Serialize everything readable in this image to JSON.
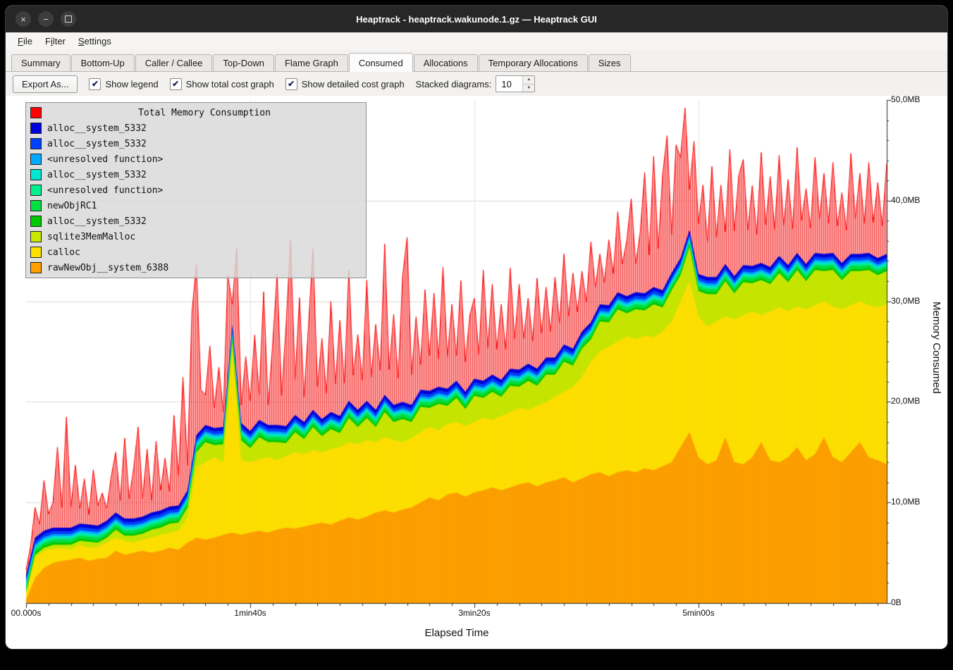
{
  "window": {
    "title": "Heaptrack - heaptrack.wakunode.1.gz — Heaptrack GUI",
    "controls": {
      "close": "×",
      "minimize": "−",
      "maximize": "square"
    }
  },
  "menu": {
    "items": [
      {
        "label": "File",
        "mnemonic": 0
      },
      {
        "label": "Filter",
        "mnemonic": 1
      },
      {
        "label": "Settings",
        "mnemonic": 0
      }
    ]
  },
  "tabs": {
    "items": [
      "Summary",
      "Bottom-Up",
      "Caller / Callee",
      "Top-Down",
      "Flame Graph",
      "Consumed",
      "Allocations",
      "Temporary Allocations",
      "Sizes"
    ],
    "active": "Consumed"
  },
  "toolbar": {
    "export_label": "Export As...",
    "checkboxes": [
      {
        "label": "Show legend",
        "checked": true
      },
      {
        "label": "Show total cost graph",
        "checked": true
      },
      {
        "label": "Show detailed cost graph",
        "checked": true
      }
    ],
    "stacked_label": "Stacked diagrams:",
    "stacked_value": "10"
  },
  "chart_data": {
    "type": "area",
    "title": "Total Memory Consumption",
    "xlabel": "Elapsed Time",
    "ylabel": "Memory Consumed",
    "xlim": [
      0,
      384
    ],
    "ylim": [
      0,
      50
    ],
    "x_ticks": [
      {
        "t": 0,
        "label": "00.000s"
      },
      {
        "t": 100,
        "label": "1min40s"
      },
      {
        "t": 200,
        "label": "3min20s"
      },
      {
        "t": 300,
        "label": "5min00s"
      }
    ],
    "y_ticks": [
      {
        "mb": 0,
        "label": "0B"
      },
      {
        "mb": 10,
        "label": "10,0MB"
      },
      {
        "mb": 20,
        "label": "20,0MB"
      },
      {
        "mb": 30,
        "label": "30,0MB"
      },
      {
        "mb": 40,
        "label": "40,0MB"
      },
      {
        "mb": 50,
        "label": "50,0MB"
      }
    ],
    "grid": {
      "h_major_mb": 10,
      "v_major_t": 100
    },
    "legend": [
      {
        "label": "Total Memory Consumption",
        "color": "#ff0000",
        "title": true
      },
      {
        "label": "alloc__system_5332",
        "color": "#0000dd"
      },
      {
        "label": "alloc__system_5332",
        "color": "#0040ff"
      },
      {
        "label": "<unresolved function>",
        "color": "#00aaff"
      },
      {
        "label": "alloc__system_5332",
        "color": "#00e6cf"
      },
      {
        "label": "<unresolved function>",
        "color": "#00f08c"
      },
      {
        "label": "newObjRC1",
        "color": "#00e040"
      },
      {
        "label": "alloc__system_5332",
        "color": "#00c800"
      },
      {
        "label": "sqlite3MemMalloc",
        "color": "#c8e800"
      },
      {
        "label": "calloc",
        "color": "#ffe100"
      },
      {
        "label": "rawNewObj__system_6388",
        "color": "#ffa000"
      }
    ],
    "x_step": 4,
    "stack": [
      {
        "name": "rawNewObj__system_6388",
        "color": "#ffa000",
        "cumulative_mb": [
          0.3,
          2.5,
          3.5,
          4.0,
          4.2,
          4.3,
          4.5,
          4.2,
          4.4,
          4.5,
          5.2,
          4.8,
          5.0,
          5.2,
          5.0,
          5.2,
          5.5,
          5.3,
          6.0,
          6.5,
          6.3,
          6.5,
          6.8,
          7.0,
          6.8,
          7.0,
          7.2,
          7.0,
          7.3,
          7.5,
          7.4,
          7.6,
          7.8,
          8.0,
          7.8,
          8.2,
          8.5,
          8.3,
          8.6,
          9.0,
          9.2,
          9.0,
          9.3,
          9.5,
          10.0,
          10.5,
          10.2,
          10.8,
          11.0,
          10.6,
          11.0,
          11.2,
          11.5,
          11.2,
          11.5,
          11.8,
          12.0,
          11.6,
          12.0,
          12.2,
          12.5,
          12.0,
          12.4,
          12.8,
          13.0,
          12.6,
          13.0,
          13.2,
          13.0,
          13.4,
          13.2,
          13.6,
          14.0,
          15.5,
          17.0,
          14.5,
          13.8,
          14.2,
          16.5,
          14.0,
          13.8,
          14.5,
          16.0,
          14.2,
          14.0,
          14.5,
          15.5,
          14.2,
          14.8,
          16.5,
          14.5,
          14.0,
          15.0,
          16.0,
          14.5,
          14.2,
          13.8
        ]
      },
      {
        "name": "calloc",
        "color": "#ffe100",
        "cumulative_mb": [
          1.0,
          4.5,
          5.2,
          5.4,
          5.5,
          5.3,
          5.8,
          5.5,
          5.6,
          6.0,
          6.5,
          6.2,
          6.0,
          6.3,
          6.5,
          6.8,
          7.0,
          7.2,
          8.5,
          13.5,
          14.0,
          14.5,
          14.0,
          25.0,
          14.2,
          14.0,
          14.3,
          14.5,
          14.2,
          14.6,
          15.0,
          14.8,
          15.2,
          15.0,
          15.3,
          15.5,
          16.0,
          15.8,
          16.2,
          16.0,
          16.5,
          16.2,
          16.0,
          16.4,
          17.0,
          17.5,
          17.2,
          17.8,
          18.0,
          17.6,
          18.0,
          18.4,
          18.2,
          18.6,
          19.0,
          19.4,
          19.2,
          19.6,
          20.0,
          20.5,
          21.0,
          21.5,
          22.5,
          24.0,
          25.0,
          25.5,
          26.0,
          26.5,
          26.2,
          26.6,
          26.4,
          27.0,
          28.0,
          30.0,
          32.0,
          28.5,
          27.5,
          28.0,
          28.5,
          28.2,
          28.6,
          29.0,
          28.6,
          29.0,
          29.4,
          29.0,
          29.5,
          29.2,
          29.6,
          30.0,
          29.5,
          29.2,
          29.6,
          30.0,
          29.6,
          29.4,
          29.7
        ]
      },
      {
        "name": "sqlite3MemMalloc",
        "color": "#c8e800",
        "thickness_mb": [
          0.1,
          0.3,
          0.3,
          0.4,
          0.3,
          0.5,
          0.4,
          0.6,
          0.4,
          0.5,
          0.8,
          0.5,
          0.7,
          0.6,
          0.8,
          0.7,
          0.9,
          0.8,
          1.0,
          1.5,
          2.0,
          1.2,
          1.8,
          1.0,
          2.0,
          1.4,
          2.2,
          1.5,
          1.8,
          1.3,
          2.0,
          1.5,
          2.3,
          1.6,
          2.0,
          1.4,
          2.4,
          1.7,
          2.2,
          1.5,
          2.5,
          1.8,
          2.3,
          1.6,
          2.5,
          1.9,
          2.6,
          1.8,
          2.4,
          1.7,
          2.6,
          2.0,
          2.8,
          1.9,
          2.6,
          2.1,
          2.9,
          2.0,
          2.7,
          2.2,
          3.0,
          2.1,
          2.8,
          2.2,
          3.0,
          2.4,
          3.2,
          2.3,
          3.0,
          2.5,
          3.3,
          2.4,
          3.1,
          2.6,
          3.4,
          2.5,
          3.2,
          2.7,
          3.5,
          2.6,
          3.3,
          2.8,
          3.5,
          2.7,
          3.4,
          2.9,
          3.6,
          2.8,
          3.5,
          3.0,
          3.6,
          2.9,
          3.4,
          3.0,
          3.5,
          3.2,
          3.3
        ]
      },
      {
        "name": "alloc__system_5332",
        "color": "#00c800",
        "thickness_mb_const": 0.2
      },
      {
        "name": "newObjRC1",
        "color": "#00e040",
        "thickness_mb_const": 0.3
      },
      {
        "name": "<unresolved function>",
        "color": "#00f08c",
        "thickness_mb_const": 0.15
      },
      {
        "name": "alloc__system_5332",
        "color": "#00e6cf",
        "thickness_mb_const": 0.2
      },
      {
        "name": "<unresolved function>",
        "color": "#00aaff",
        "thickness_mb_const": 0.2
      },
      {
        "name": "alloc__system_5332",
        "color": "#0040ff",
        "thickness_mb_const": 0.3
      },
      {
        "name": "alloc__system_5332",
        "color": "#0000dd",
        "thickness_mb_const": 0.35
      }
    ],
    "total": {
      "name": "Total Memory Consumption",
      "color": "#ff0000",
      "x_step": 2,
      "extra_above_stack_mb": [
        0.5,
        1.0,
        3.0,
        1.0,
        5.0,
        1.5,
        2.5,
        8.0,
        2.0,
        11.0,
        2.0,
        6.0,
        1.5,
        4.5,
        1.0,
        5.5,
        2.0,
        3.0,
        1.2,
        4.0,
        6.0,
        1.5,
        8.0,
        2.0,
        5.0,
        9.0,
        1.8,
        6.5,
        1.2,
        7.0,
        2.0,
        5.0,
        1.5,
        9.0,
        3.0,
        12.0,
        2.5,
        15.0,
        17.0,
        4.0,
        3.0,
        8.0,
        2.0,
        6.0,
        1.5,
        10.0,
        2.0,
        12.5,
        1.8,
        7.0,
        3.0,
        9.0,
        2.5,
        13.0,
        2.0,
        8.0,
        15.0,
        3.0,
        10.0,
        18.0,
        3.5,
        12.0,
        2.5,
        9.0,
        16.0,
        2.8,
        8.0,
        2.2,
        11.0,
        3.0,
        9.5,
        2.5,
        13.0,
        3.0,
        7.5,
        2.5,
        12.0,
        2.8,
        8.5,
        3.2,
        15.0,
        3.0,
        9.0,
        2.5,
        12.5,
        16.5,
        3.0,
        8.0,
        2.5,
        10.0,
        3.5,
        9.5,
        2.8,
        12.0,
        3.2,
        8.0,
        2.5,
        10.5,
        3.0,
        7.0,
        8.0,
        2.5,
        11.0,
        3.0,
        9.0,
        2.8,
        7.5,
        2.5,
        10.0,
        3.0,
        8.5,
        2.8,
        6.5,
        2.5,
        9.0,
        3.0,
        7.0,
        2.6,
        8.0,
        2.8,
        9.0,
        3.0,
        7.5,
        2.8,
        6.0,
        2.5,
        8.0,
        2.6,
        5.0,
        2.2,
        6.5,
        2.5,
        8.0,
        3.0,
        5.5,
        9.5,
        2.8,
        6.0,
        12.0,
        3.5,
        13.0,
        4.0,
        11.5,
        14.5,
        3.8,
        12.0,
        10.0,
        13.5,
        4.0,
        11.0,
        5.0,
        9.0,
        3.5,
        11.0,
        4.0,
        8.5,
        3.2,
        12.0,
        4.5,
        9.5,
        10.5,
        3.5,
        8.0,
        3.0,
        11.0,
        4.0,
        9.0,
        3.2,
        10.0,
        3.5,
        8.5,
        3.0,
        10.5,
        3.8,
        7.5,
        3.0,
        9.5,
        3.4,
        8.0,
        3.0,
        9.0,
        3.2,
        7.0,
        2.8,
        10.0,
        3.5,
        8.0,
        3.0,
        9.0,
        3.3,
        7.5,
        3.0,
        9.0
      ]
    }
  }
}
